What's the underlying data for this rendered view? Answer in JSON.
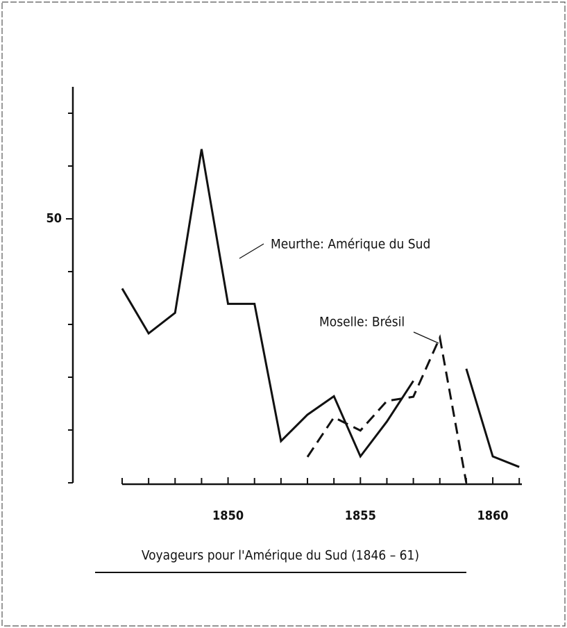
{
  "chart_data": {
    "type": "line",
    "title": "Voyageurs pour l'Amérique du Sud (1846 – 61)",
    "x": [
      1846,
      1847,
      1848,
      1849,
      1850,
      1851,
      1852,
      1853,
      1854,
      1855,
      1856,
      1857,
      1858,
      1859,
      1860,
      1861
    ],
    "series": [
      {
        "name": "Meurthe: Amérique du Sud",
        "color": "#111111",
        "style": "solid",
        "values": [
          36.8,
          28.3,
          32.2,
          63.2,
          33.9,
          33.9,
          7.9,
          12.9,
          16.4,
          5,
          11.6,
          19.3,
          null,
          21.6,
          5,
          3
        ]
      },
      {
        "name": "Moselle: Brésil",
        "color": "#111111",
        "style": "dashed",
        "values": [
          null,
          null,
          null,
          null,
          null,
          null,
          null,
          4.9,
          12.4,
          9.9,
          15.5,
          16.3,
          27.5,
          0,
          null,
          null
        ]
      }
    ],
    "xlim": [
      1846,
      1861.1
    ],
    "xticks": [
      1850,
      1855,
      1860
    ],
    "xminor_ticks": [
      1846,
      1847,
      1848,
      1849,
      1851,
      1852,
      1853,
      1854,
      1856,
      1857,
      1858,
      1859,
      1861
    ],
    "ylim": [
      0,
      75
    ],
    "yticks": [
      50
    ],
    "yminor_ticks": [
      0,
      10,
      20,
      30,
      40,
      60,
      70
    ],
    "grid": false
  }
}
